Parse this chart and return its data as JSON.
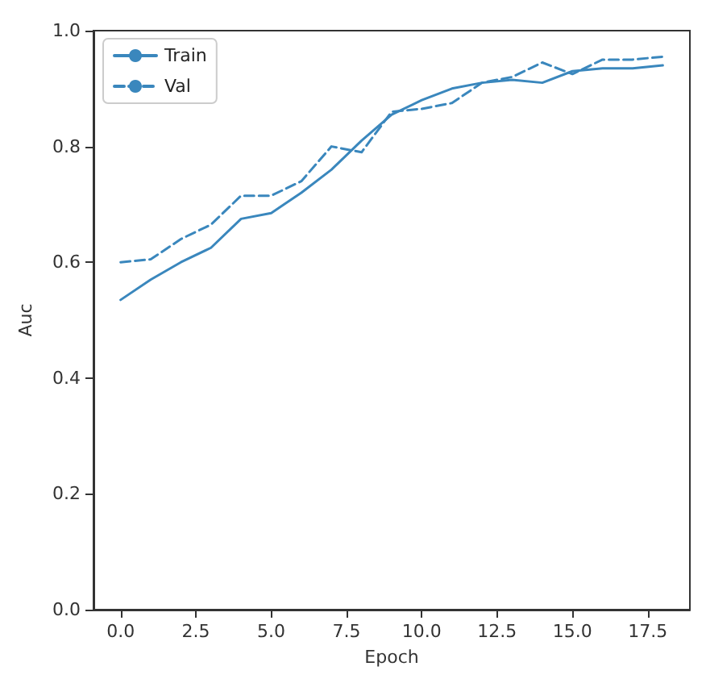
{
  "chart_data": {
    "type": "line",
    "xlabel": "Epoch",
    "ylabel": "Auc",
    "x": [
      0,
      1,
      2,
      3,
      4,
      5,
      6,
      7,
      8,
      9,
      10,
      11,
      12,
      13,
      14,
      15,
      16,
      17,
      18
    ],
    "series": [
      {
        "name": "Train",
        "color": "#3a87bd",
        "line_style": "solid",
        "values": [
          0.535,
          0.57,
          0.6,
          0.625,
          0.675,
          0.685,
          0.72,
          0.76,
          0.81,
          0.855,
          0.88,
          0.9,
          0.91,
          0.915,
          0.91,
          0.93,
          0.935,
          0.935,
          0.94
        ]
      },
      {
        "name": "Val",
        "color": "#3a87bd",
        "line_style": "dashed",
        "values": [
          0.6,
          0.605,
          0.64,
          0.665,
          0.715,
          0.715,
          0.74,
          0.8,
          0.79,
          0.86,
          0.865,
          0.875,
          0.91,
          0.92,
          0.945,
          0.925,
          0.95,
          0.95,
          0.955
        ]
      }
    ],
    "xlim": [
      -0.9,
      18.9
    ],
    "xticks": [
      {
        "value": 0,
        "label": "0.0"
      },
      {
        "value": 2.5,
        "label": "2.5"
      },
      {
        "value": 5,
        "label": "5.0"
      },
      {
        "value": 7.5,
        "label": "7.5"
      },
      {
        "value": 10,
        "label": "10.0"
      },
      {
        "value": 12.5,
        "label": "12.5"
      },
      {
        "value": 15,
        "label": "15.0"
      },
      {
        "value": 17.5,
        "label": "17.5"
      }
    ],
    "ylim": [
      0,
      1
    ],
    "yticks": [
      {
        "value": 0,
        "label": "0.0"
      },
      {
        "value": 0.2,
        "label": "0.2"
      },
      {
        "value": 0.4,
        "label": "0.4"
      },
      {
        "value": 0.6,
        "label": "0.6"
      },
      {
        "value": 0.8,
        "label": "0.8"
      },
      {
        "value": 1,
        "label": "1.0"
      }
    ],
    "grid": false,
    "legend": "top left",
    "marker": "none"
  }
}
